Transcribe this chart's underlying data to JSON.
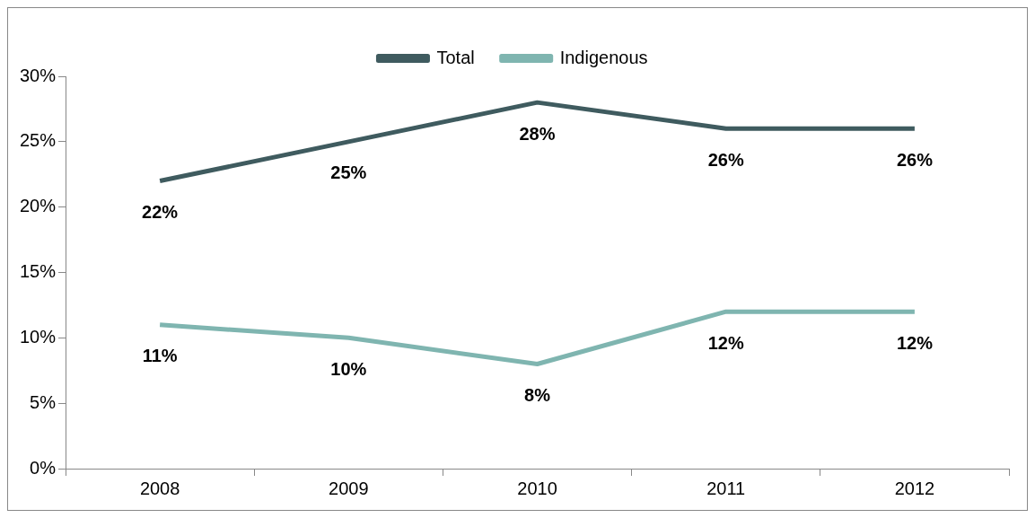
{
  "chart_data": {
    "type": "line",
    "categories": [
      "2008",
      "2009",
      "2010",
      "2011",
      "2012"
    ],
    "series": [
      {
        "name": "Total",
        "color": "#3f5b5f",
        "values": [
          22,
          25,
          28,
          26,
          26
        ],
        "value_labels": [
          "22%",
          "25%",
          "28%",
          "26%",
          "26%"
        ]
      },
      {
        "name": "Indigenous",
        "color": "#7fb5b0",
        "values": [
          11,
          10,
          8,
          12,
          12
        ],
        "value_labels": [
          "11%",
          "10%",
          "8%",
          "12%",
          "12%"
        ]
      }
    ],
    "ylim": [
      0,
      30
    ],
    "yticks": [
      {
        "value": 0,
        "label": "0%"
      },
      {
        "value": 5,
        "label": "5%"
      },
      {
        "value": 10,
        "label": "10%"
      },
      {
        "value": 15,
        "label": "15%"
      },
      {
        "value": 20,
        "label": "20%"
      },
      {
        "value": 25,
        "label": "25%"
      },
      {
        "value": 30,
        "label": "30%"
      }
    ],
    "legend": "top",
    "grid": false,
    "marker": "none",
    "line_style": "solid"
  }
}
